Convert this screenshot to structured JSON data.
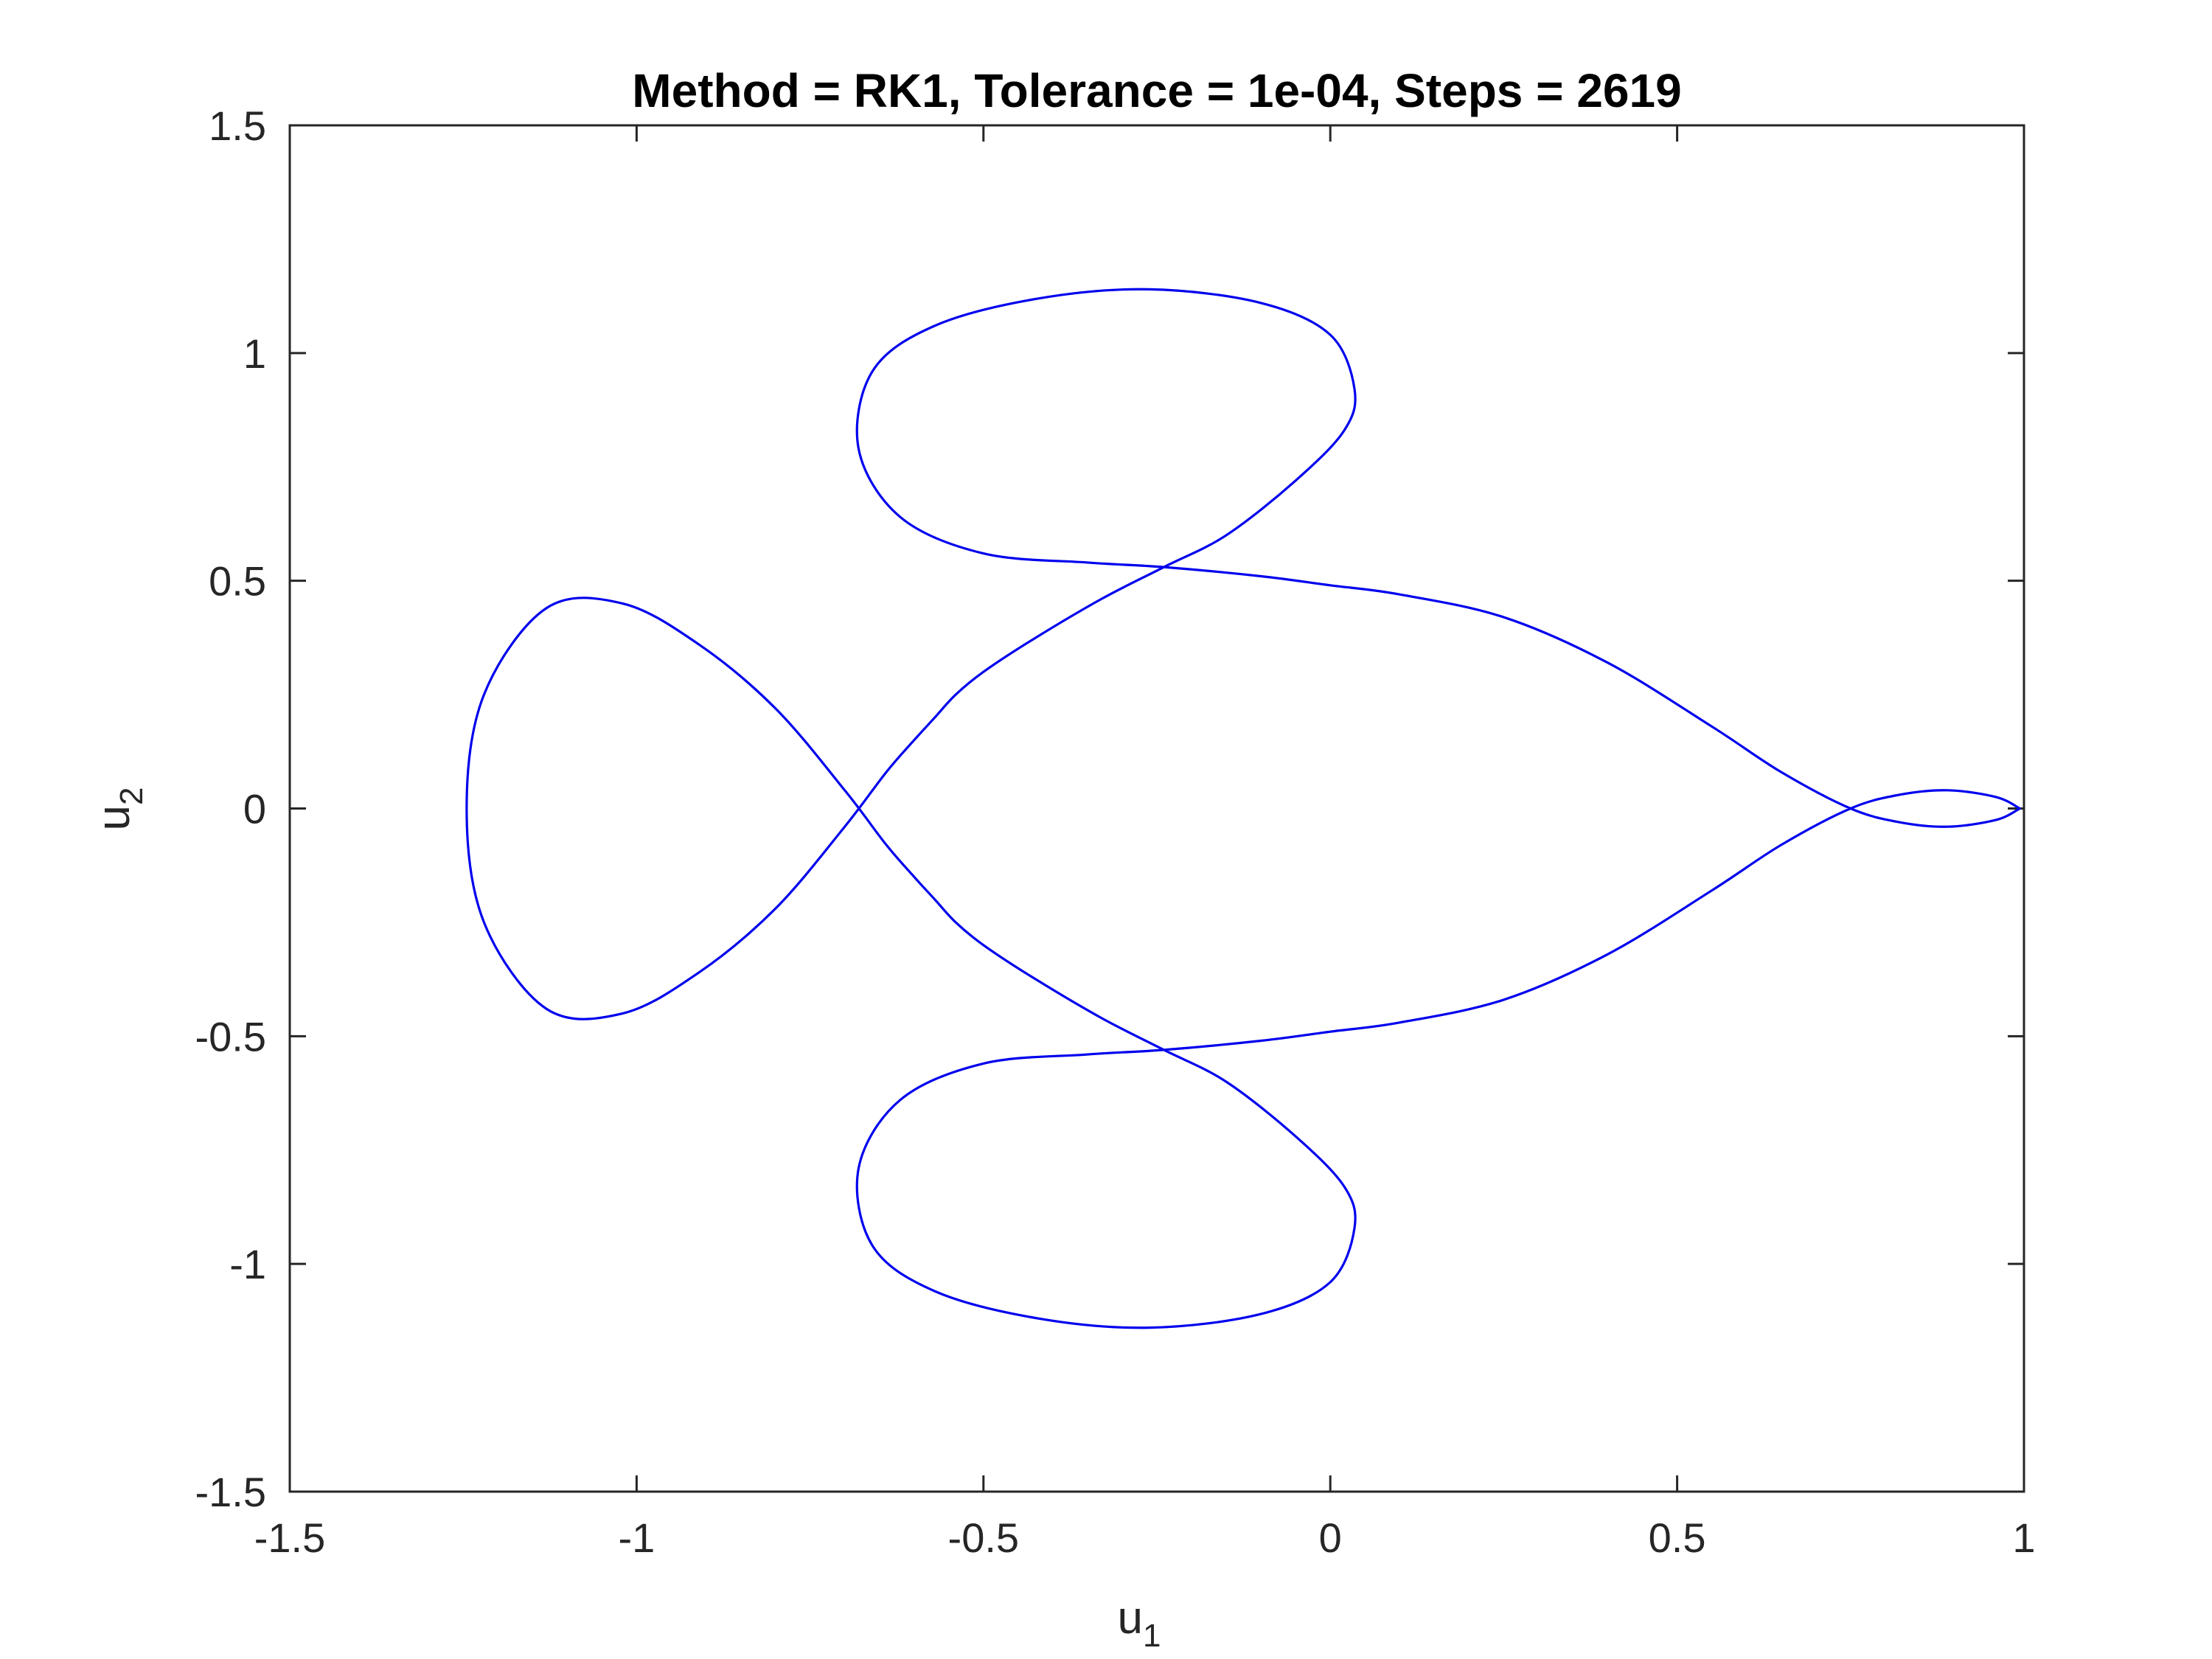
{
  "chart_data": {
    "type": "line",
    "title": "Method = RK1, Tolerance = 1e-04, Steps = 2619",
    "xlabel": {
      "base": "u",
      "sub": "1"
    },
    "ylabel": {
      "base": "u",
      "sub": "2"
    },
    "xlim": [
      -1.5,
      1
    ],
    "ylim": [
      -1.5,
      1.5
    ],
    "xticks": [
      -1.5,
      -1,
      -0.5,
      0,
      0.5,
      1
    ],
    "yticks": [
      -1.5,
      -1,
      -0.5,
      0,
      0.5,
      1,
      1.5
    ],
    "xtick_labels": [
      "-1.5",
      "-1",
      "-0.5",
      "0",
      "0.5",
      "1"
    ],
    "ytick_labels": [
      "-1.5",
      "-1",
      "-0.5",
      "0",
      "0.5",
      "1",
      "1.5"
    ],
    "grid": false,
    "box": true,
    "series": [
      {
        "color": "#0000ee",
        "x": [
          0.994,
          0.96,
          0.89,
          0.82,
          0.75,
          0.65,
          0.55,
          0.4,
          0.25,
          0.1,
          0.0,
          -0.1,
          -0.24,
          -0.35,
          -0.5,
          -0.62,
          -0.68,
          -0.66,
          -0.57,
          -0.42,
          -0.26,
          -0.1,
          0.0,
          0.035,
          0.02,
          -0.05,
          -0.15,
          -0.24,
          -0.33,
          -0.43,
          -0.5,
          -0.54,
          -0.57,
          -0.6,
          -0.64,
          -0.7,
          -0.8,
          -0.91,
          -1.02,
          -1.13,
          -1.22,
          -1.245,
          -1.22,
          -1.13,
          -1.02,
          -0.91,
          -0.8,
          -0.7,
          -0.64,
          -0.6,
          -0.57,
          -0.54,
          -0.5,
          -0.43,
          -0.33,
          -0.24,
          -0.15,
          -0.05,
          0.02,
          0.035,
          0.0,
          -0.1,
          -0.26,
          -0.42,
          -0.57,
          -0.66,
          -0.68,
          -0.62,
          -0.5,
          -0.35,
          -0.24,
          -0.1,
          0.0,
          0.1,
          0.25,
          0.4,
          0.55,
          0.65,
          0.75,
          0.82,
          0.89,
          0.96,
          0.994
        ],
        "y": [
          0.0,
          0.025,
          0.04,
          0.03,
          0.0,
          -0.08,
          -0.18,
          -0.32,
          -0.42,
          -0.47,
          -0.49,
          -0.51,
          -0.53,
          -0.54,
          -0.56,
          -0.64,
          -0.79,
          -0.96,
          -1.06,
          -1.12,
          -1.14,
          -1.11,
          -1.04,
          -0.92,
          -0.83,
          -0.72,
          -0.6,
          -0.53,
          -0.46,
          -0.37,
          -0.3,
          -0.25,
          -0.2,
          -0.15,
          -0.08,
          0.04,
          0.22,
          0.36,
          0.45,
          0.44,
          0.25,
          0.0,
          -0.25,
          -0.44,
          -0.45,
          -0.36,
          -0.22,
          -0.04,
          0.08,
          0.15,
          0.2,
          0.25,
          0.3,
          0.37,
          0.46,
          0.53,
          0.6,
          0.72,
          0.83,
          0.92,
          1.04,
          1.11,
          1.14,
          1.12,
          1.06,
          0.96,
          0.79,
          0.64,
          0.56,
          0.54,
          0.53,
          0.51,
          0.49,
          0.47,
          0.42,
          0.32,
          0.18,
          0.08,
          0.0,
          -0.03,
          -0.04,
          -0.025,
          0.0
        ]
      }
    ]
  }
}
